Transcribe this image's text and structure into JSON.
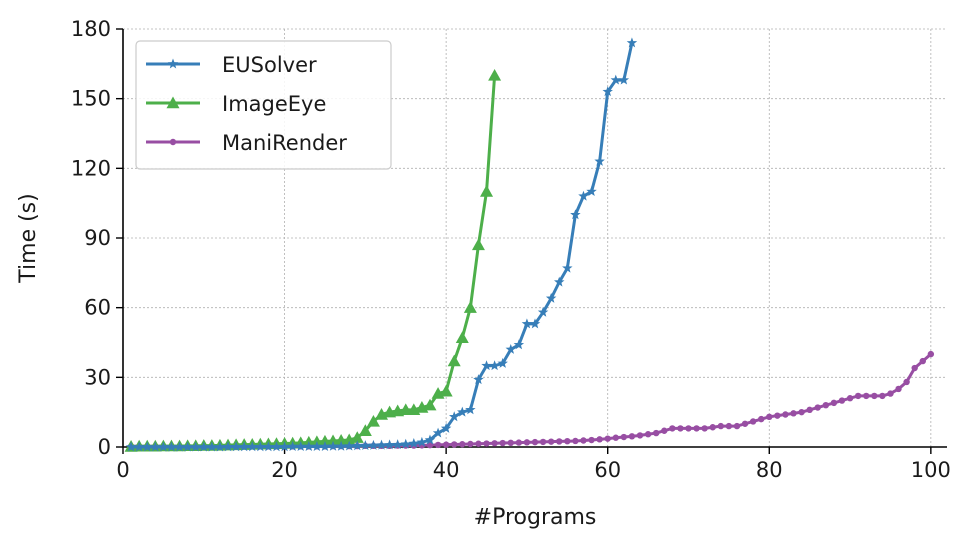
{
  "chart_data": {
    "type": "line",
    "xlabel": "#Programs",
    "ylabel": "Time (s)",
    "xlim": [
      0,
      102
    ],
    "ylim": [
      0,
      180
    ],
    "xticks": [
      0,
      20,
      40,
      60,
      80,
      100
    ],
    "yticks": [
      0,
      30,
      60,
      90,
      120,
      150,
      180
    ],
    "grid": true,
    "legend_position": "top-left",
    "series": [
      {
        "name": "EUSolver",
        "color": "#377eb8",
        "marker": "star",
        "x": [
          1,
          2,
          3,
          4,
          5,
          6,
          7,
          8,
          9,
          10,
          11,
          12,
          13,
          14,
          15,
          16,
          17,
          18,
          19,
          20,
          21,
          22,
          23,
          24,
          25,
          26,
          27,
          28,
          29,
          30,
          31,
          32,
          33,
          34,
          35,
          36,
          37,
          38,
          39,
          40,
          41,
          42,
          43,
          44,
          45,
          46,
          47,
          48,
          49,
          50,
          51,
          52,
          53,
          54,
          55,
          56,
          57,
          58,
          59,
          60,
          61,
          62,
          63
        ],
        "y": [
          0,
          0,
          0,
          0,
          0,
          0,
          0,
          0,
          0,
          0,
          0,
          0,
          0.1,
          0.1,
          0.1,
          0.1,
          0.1,
          0.1,
          0.1,
          0.1,
          0.2,
          0.2,
          0.2,
          0.2,
          0.2,
          0.3,
          0.3,
          0.4,
          0.5,
          0.6,
          0.7,
          0.8,
          0.9,
          1,
          1.2,
          1.5,
          2,
          3,
          6,
          8,
          13,
          15,
          16,
          29,
          35,
          35,
          36,
          42,
          44,
          53,
          53,
          58,
          64,
          71,
          77,
          100,
          108,
          110,
          123,
          153,
          158,
          158,
          174
        ]
      },
      {
        "name": "ImageEye",
        "color": "#4daf4a",
        "marker": "triangle",
        "x": [
          1,
          2,
          3,
          4,
          5,
          6,
          7,
          8,
          9,
          10,
          11,
          12,
          13,
          14,
          15,
          16,
          17,
          18,
          19,
          20,
          21,
          22,
          23,
          24,
          25,
          26,
          27,
          28,
          29,
          30,
          31,
          32,
          33,
          34,
          35,
          36,
          37,
          38,
          39,
          40,
          41,
          42,
          43,
          44,
          45,
          46
        ],
        "y": [
          0.2,
          0.3,
          0.3,
          0.3,
          0.4,
          0.4,
          0.4,
          0.5,
          0.5,
          0.6,
          0.6,
          0.7,
          0.8,
          0.9,
          1,
          1.1,
          1.2,
          1.3,
          1.4,
          1.5,
          1.6,
          1.8,
          2,
          2.2,
          2.4,
          2.6,
          2.8,
          3,
          4,
          7,
          11,
          14,
          15,
          15.5,
          16,
          16,
          17,
          18,
          23,
          24,
          37,
          47,
          60,
          87,
          110,
          160
        ]
      },
      {
        "name": "ManiRender",
        "color": "#984ea3",
        "marker": "dot",
        "x": [
          1,
          2,
          3,
          4,
          5,
          6,
          7,
          8,
          9,
          10,
          11,
          12,
          13,
          14,
          15,
          16,
          17,
          18,
          19,
          20,
          21,
          22,
          23,
          24,
          25,
          26,
          27,
          28,
          29,
          30,
          31,
          32,
          33,
          34,
          35,
          36,
          37,
          38,
          39,
          40,
          41,
          42,
          43,
          44,
          45,
          46,
          47,
          48,
          49,
          50,
          51,
          52,
          53,
          54,
          55,
          56,
          57,
          58,
          59,
          60,
          61,
          62,
          63,
          64,
          65,
          66,
          67,
          68,
          69,
          70,
          71,
          72,
          73,
          74,
          75,
          76,
          77,
          78,
          79,
          80,
          81,
          82,
          83,
          84,
          85,
          86,
          87,
          88,
          89,
          90,
          91,
          92,
          93,
          94,
          95,
          96,
          97,
          98,
          99,
          100
        ],
        "y": [
          0.3,
          0.3,
          0.3,
          0.3,
          0.3,
          0.3,
          0.3,
          0.3,
          0.3,
          0.3,
          0.3,
          0.3,
          0.3,
          0.3,
          0.3,
          0.3,
          0.3,
          0.3,
          0.3,
          0.3,
          0.3,
          0.3,
          0.3,
          0.3,
          0.3,
          0.4,
          0.4,
          0.4,
          0.4,
          0.5,
          0.5,
          0.5,
          0.5,
          0.6,
          0.6,
          0.6,
          0.7,
          0.8,
          0.9,
          1,
          1.1,
          1.2,
          1.3,
          1.4,
          1.5,
          1.6,
          1.7,
          1.8,
          1.9,
          2,
          2.1,
          2.2,
          2.3,
          2.4,
          2.5,
          2.6,
          2.8,
          3,
          3.3,
          3.6,
          4,
          4.3,
          4.6,
          5,
          5.5,
          6,
          7,
          8,
          8,
          8,
          8,
          8,
          8.5,
          9,
          9,
          9,
          10,
          11,
          12,
          13,
          13.5,
          14,
          14.5,
          15,
          16,
          17,
          18,
          19,
          20,
          21,
          22,
          22,
          22,
          22,
          23,
          25,
          28,
          34,
          37,
          40
        ]
      }
    ]
  }
}
